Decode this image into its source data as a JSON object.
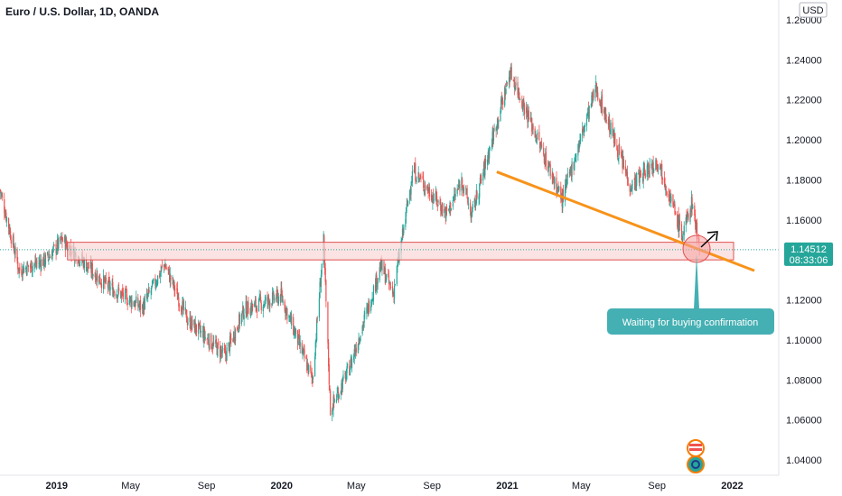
{
  "header": {
    "title": "Euro / U.S. Dollar, 1D, OANDA"
  },
  "price_axis": {
    "currency": "USD",
    "ticks": [
      "1.26000",
      "1.24000",
      "1.22000",
      "1.20000",
      "1.18000",
      "1.16000",
      "1.12000",
      "1.10000",
      "1.08000",
      "1.06000",
      "1.04000"
    ],
    "last_price": "1.14512",
    "countdown": "08:33:06"
  },
  "time_axis": {
    "labels": [
      {
        "text": "2019",
        "bold": true
      },
      {
        "text": "May",
        "bold": false
      },
      {
        "text": "Sep",
        "bold": false
      },
      {
        "text": "2020",
        "bold": true
      },
      {
        "text": "May",
        "bold": false
      },
      {
        "text": "Sep",
        "bold": false
      },
      {
        "text": "2021",
        "bold": true
      },
      {
        "text": "May",
        "bold": false
      },
      {
        "text": "Sep",
        "bold": false
      },
      {
        "text": "2022",
        "bold": true
      }
    ]
  },
  "annotation": {
    "text": "Waiting for buying confirmation"
  },
  "colors": {
    "up": "#26a69a",
    "down": "#ef5350",
    "trendline": "#f7931a",
    "zone_fill": "#fbd7d7",
    "zone_border": "#e05050",
    "callout": "#45b0b3",
    "price_label": "#26a69a"
  },
  "chart_data": {
    "type": "candlestick",
    "title": "Euro / U.S. Dollar, 1D, OANDA",
    "ylim": [
      1.04,
      1.26
    ],
    "x_range": [
      "2018-10-01",
      "2022-01-15"
    ],
    "current_price": 1.14512,
    "path": [
      [
        "2018-10-01",
        1.175
      ],
      [
        "2018-11-01",
        1.135
      ],
      [
        "2018-12-15",
        1.14
      ],
      [
        "2019-01-10",
        1.15
      ],
      [
        "2019-03-20",
        1.128
      ],
      [
        "2019-05-20",
        1.116
      ],
      [
        "2019-06-25",
        1.138
      ],
      [
        "2019-08-01",
        1.11
      ],
      [
        "2019-10-01",
        1.092
      ],
      [
        "2019-11-01",
        1.115
      ],
      [
        "2019-12-31",
        1.122
      ],
      [
        "2020-02-20",
        1.08
      ],
      [
        "2020-03-09",
        1.149
      ],
      [
        "2020-03-20",
        1.065
      ],
      [
        "2020-04-20",
        1.086
      ],
      [
        "2020-06-10",
        1.137
      ],
      [
        "2020-06-30",
        1.123
      ],
      [
        "2020-08-01",
        1.185
      ],
      [
        "2020-09-25",
        1.163
      ],
      [
        "2020-10-20",
        1.18
      ],
      [
        "2020-11-04",
        1.162
      ],
      [
        "2021-01-06",
        1.234
      ],
      [
        "2021-03-31",
        1.17
      ],
      [
        "2021-05-25",
        1.226
      ],
      [
        "2021-07-20",
        1.177
      ],
      [
        "2021-09-03",
        1.19
      ],
      [
        "2021-10-12",
        1.152
      ],
      [
        "2021-10-28",
        1.169
      ],
      [
        "2021-11-09",
        1.145
      ]
    ],
    "support_zone": [
      1.14,
      1.147
    ],
    "trendline": [
      [
        "2020-12-15",
        1.184
      ],
      [
        "2021-11-10",
        1.145
      ]
    ]
  }
}
